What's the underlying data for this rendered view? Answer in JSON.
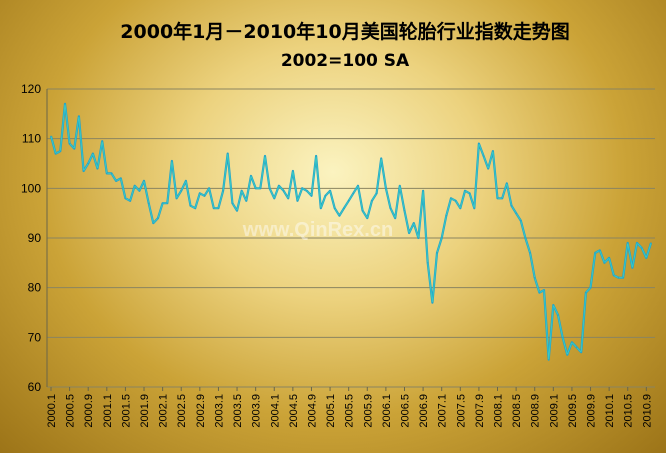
{
  "chart_data": {
    "type": "line",
    "title": "2000年1月－2010年10月美国轮胎行业指数走势图",
    "subtitle": "2002=100 SA",
    "watermark": "www.QinRex.cn",
    "ylim": [
      60,
      120
    ],
    "yticks": [
      60,
      70,
      80,
      90,
      100,
      110,
      120
    ],
    "grid": true,
    "line_colors": [
      "#25a3c8",
      "#3fd6c4"
    ],
    "x_tick_labels": [
      "2000.1",
      "2000.5",
      "2000.9",
      "2001.1",
      "2001.5",
      "2001.9",
      "2002.1",
      "2002.5",
      "2002.9",
      "2003.1",
      "2003.5",
      "2003.9",
      "2004.1",
      "2004.5",
      "2004.9",
      "2005.1",
      "2005.5",
      "2005.9",
      "2006.1",
      "2006.5",
      "2006.9",
      "2007.1",
      "2007.5",
      "2007.9",
      "2008.1",
      "2008.5",
      "2008.9",
      "2009.1",
      "2009.5",
      "2009.9",
      "2010.1",
      "2010.5",
      "2010.9"
    ],
    "x": [
      "2000.1",
      "2000.2",
      "2000.3",
      "2000.4",
      "2000.5",
      "2000.6",
      "2000.7",
      "2000.8",
      "2000.9",
      "2000.10",
      "2000.11",
      "2000.12",
      "2001.1",
      "2001.2",
      "2001.3",
      "2001.4",
      "2001.5",
      "2001.6",
      "2001.7",
      "2001.8",
      "2001.9",
      "2001.10",
      "2001.11",
      "2001.12",
      "2002.1",
      "2002.2",
      "2002.3",
      "2002.4",
      "2002.5",
      "2002.6",
      "2002.7",
      "2002.8",
      "2002.9",
      "2002.10",
      "2002.11",
      "2002.12",
      "2003.1",
      "2003.2",
      "2003.3",
      "2003.4",
      "2003.5",
      "2003.6",
      "2003.7",
      "2003.8",
      "2003.9",
      "2003.10",
      "2003.11",
      "2003.12",
      "2004.1",
      "2004.2",
      "2004.3",
      "2004.4",
      "2004.5",
      "2004.6",
      "2004.7",
      "2004.8",
      "2004.9",
      "2004.10",
      "2004.11",
      "2004.12",
      "2005.1",
      "2005.2",
      "2005.3",
      "2005.4",
      "2005.5",
      "2005.6",
      "2005.7",
      "2005.8",
      "2005.9",
      "2005.10",
      "2005.11",
      "2005.12",
      "2006.1",
      "2006.2",
      "2006.3",
      "2006.4",
      "2006.5",
      "2006.6",
      "2006.7",
      "2006.8",
      "2006.9",
      "2006.10",
      "2006.11",
      "2006.12",
      "2007.1",
      "2007.2",
      "2007.3",
      "2007.4",
      "2007.5",
      "2007.6",
      "2007.7",
      "2007.8",
      "2007.9",
      "2007.10",
      "2007.11",
      "2007.12",
      "2008.1",
      "2008.2",
      "2008.3",
      "2008.4",
      "2008.5",
      "2008.6",
      "2008.7",
      "2008.8",
      "2008.9",
      "2008.10",
      "2008.11",
      "2008.12",
      "2009.1",
      "2009.2",
      "2009.3",
      "2009.4",
      "2009.5",
      "2009.6",
      "2009.7",
      "2009.8",
      "2009.9",
      "2009.10",
      "2009.11",
      "2009.12",
      "2010.1",
      "2010.2",
      "2010.3",
      "2010.4",
      "2010.5",
      "2010.6",
      "2010.7",
      "2010.8",
      "2010.9",
      "2010.10"
    ],
    "values": [
      110.5,
      107,
      107.5,
      117,
      109,
      108,
      114.5,
      103.5,
      105,
      107,
      104,
      109.5,
      103,
      103,
      101.5,
      102,
      98,
      97.5,
      100.5,
      99.5,
      101.5,
      97,
      93,
      94,
      97,
      97,
      105.5,
      98,
      99.5,
      101.5,
      96.5,
      96,
      99,
      98.5,
      100,
      96,
      96,
      99.5,
      107,
      97,
      95.5,
      99.5,
      97.5,
      102.5,
      100,
      100,
      106.5,
      100,
      98,
      100.5,
      99.5,
      98,
      103.5,
      97.5,
      100,
      99.5,
      98.5,
      106.5,
      96,
      98.5,
      99.5,
      96,
      94.5,
      96,
      97.5,
      99,
      100.5,
      95.5,
      94,
      97.5,
      99,
      106,
      100,
      96,
      94,
      100.5,
      95.5,
      91,
      93,
      90,
      99.5,
      85,
      77,
      87,
      90,
      94.5,
      98,
      97.5,
      96,
      99.5,
      99,
      96,
      109,
      106.5,
      104,
      107.5,
      98,
      98,
      101,
      96.5,
      95,
      93.5,
      90,
      87,
      82,
      79,
      79.5,
      65.5,
      76.5,
      74.5,
      70,
      66.5,
      69,
      68,
      67,
      79,
      80,
      87,
      87.5,
      85,
      86,
      82.5,
      82,
      82,
      89,
      84,
      89,
      88,
      86,
      89
    ]
  }
}
